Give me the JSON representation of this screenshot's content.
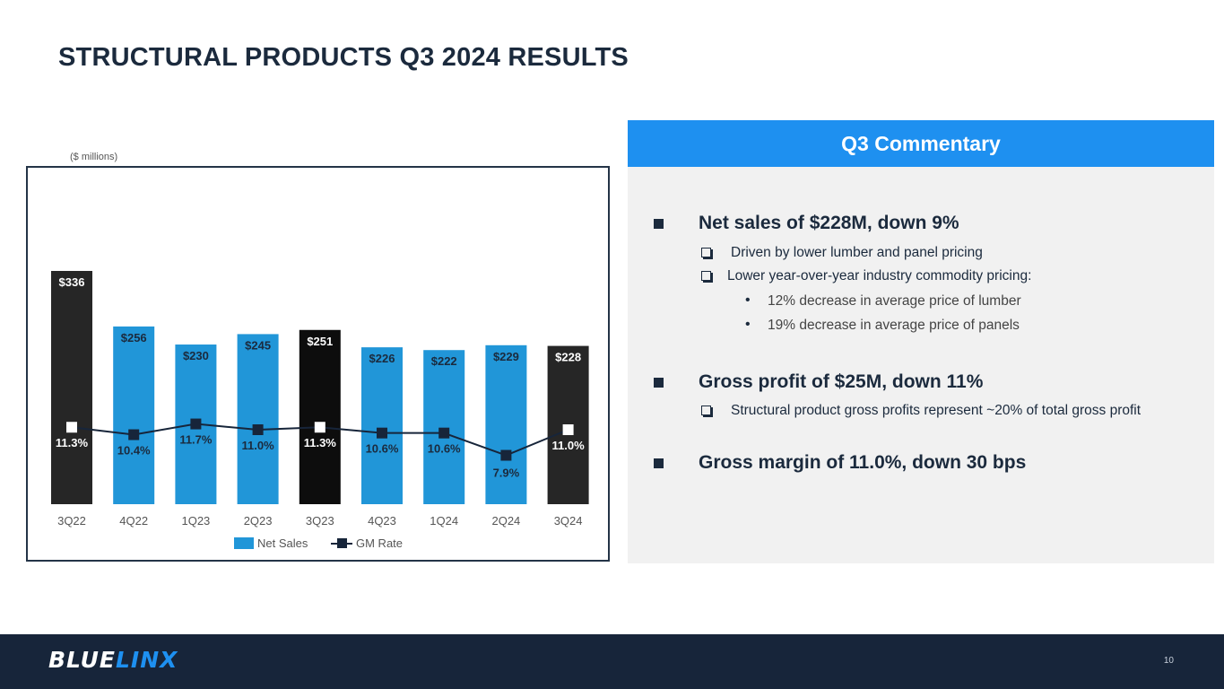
{
  "title": "STRUCTURAL PRODUCTS Q3 2024 RESULTS",
  "units_label": "($ millions)",
  "chart_data": {
    "type": "bar",
    "categories": [
      "3Q22",
      "4Q22",
      "1Q23",
      "2Q23",
      "3Q23",
      "4Q23",
      "1Q24",
      "2Q24",
      "3Q24"
    ],
    "series": [
      {
        "name": "Net Sales",
        "type": "bar",
        "values": [
          336,
          256,
          230,
          245,
          251,
          226,
          222,
          229,
          228
        ],
        "labels": [
          "$336",
          "$256",
          "$230",
          "$245",
          "$251",
          "$226",
          "$222",
          "$229",
          "$228"
        ]
      },
      {
        "name": "GM Rate",
        "type": "line",
        "values": [
          11.3,
          10.4,
          11.7,
          11.0,
          11.3,
          10.6,
          10.6,
          7.9,
          11.0
        ],
        "labels": [
          "11.3%",
          "10.4%",
          "11.7%",
          "11.0%",
          "11.3%",
          "10.6%",
          "10.6%",
          "7.9%",
          "11.0%"
        ]
      }
    ],
    "highlight_categories": [
      "3Q22",
      "3Q23",
      "3Q24"
    ],
    "colors": {
      "bar": "#2196d8",
      "bar_highlight": "#262626",
      "bar_3Q23": "#0d0d0d",
      "line": "#17253a",
      "marker_highlight": "#ffffff"
    },
    "legend": [
      "Net Sales",
      "GM Rate"
    ],
    "legend_position": "bottom",
    "ylim_sales": [
      0,
      400
    ]
  },
  "commentary": {
    "header": "Q3 Commentary",
    "bullets": [
      {
        "text": "Net sales of $228M, down 9%",
        "subs": [
          {
            "text": "Driven by lower lumber and panel pricing"
          },
          {
            "text": "Lower year-over-year industry commodity pricing:"
          }
        ],
        "subsubs": [
          "12% decrease in average price of lumber",
          "19% decrease in average price of panels"
        ]
      },
      {
        "text": "Gross profit of $25M, down 11%",
        "subs": [
          {
            "text": "Structural product gross profits represent ~20% of total gross profit"
          }
        ]
      },
      {
        "text": "Gross margin of 11.0%, down 30 bps"
      }
    ]
  },
  "footer": {
    "logo_part1": "BLUE",
    "logo_part2": "LINX",
    "page_number": "10"
  }
}
